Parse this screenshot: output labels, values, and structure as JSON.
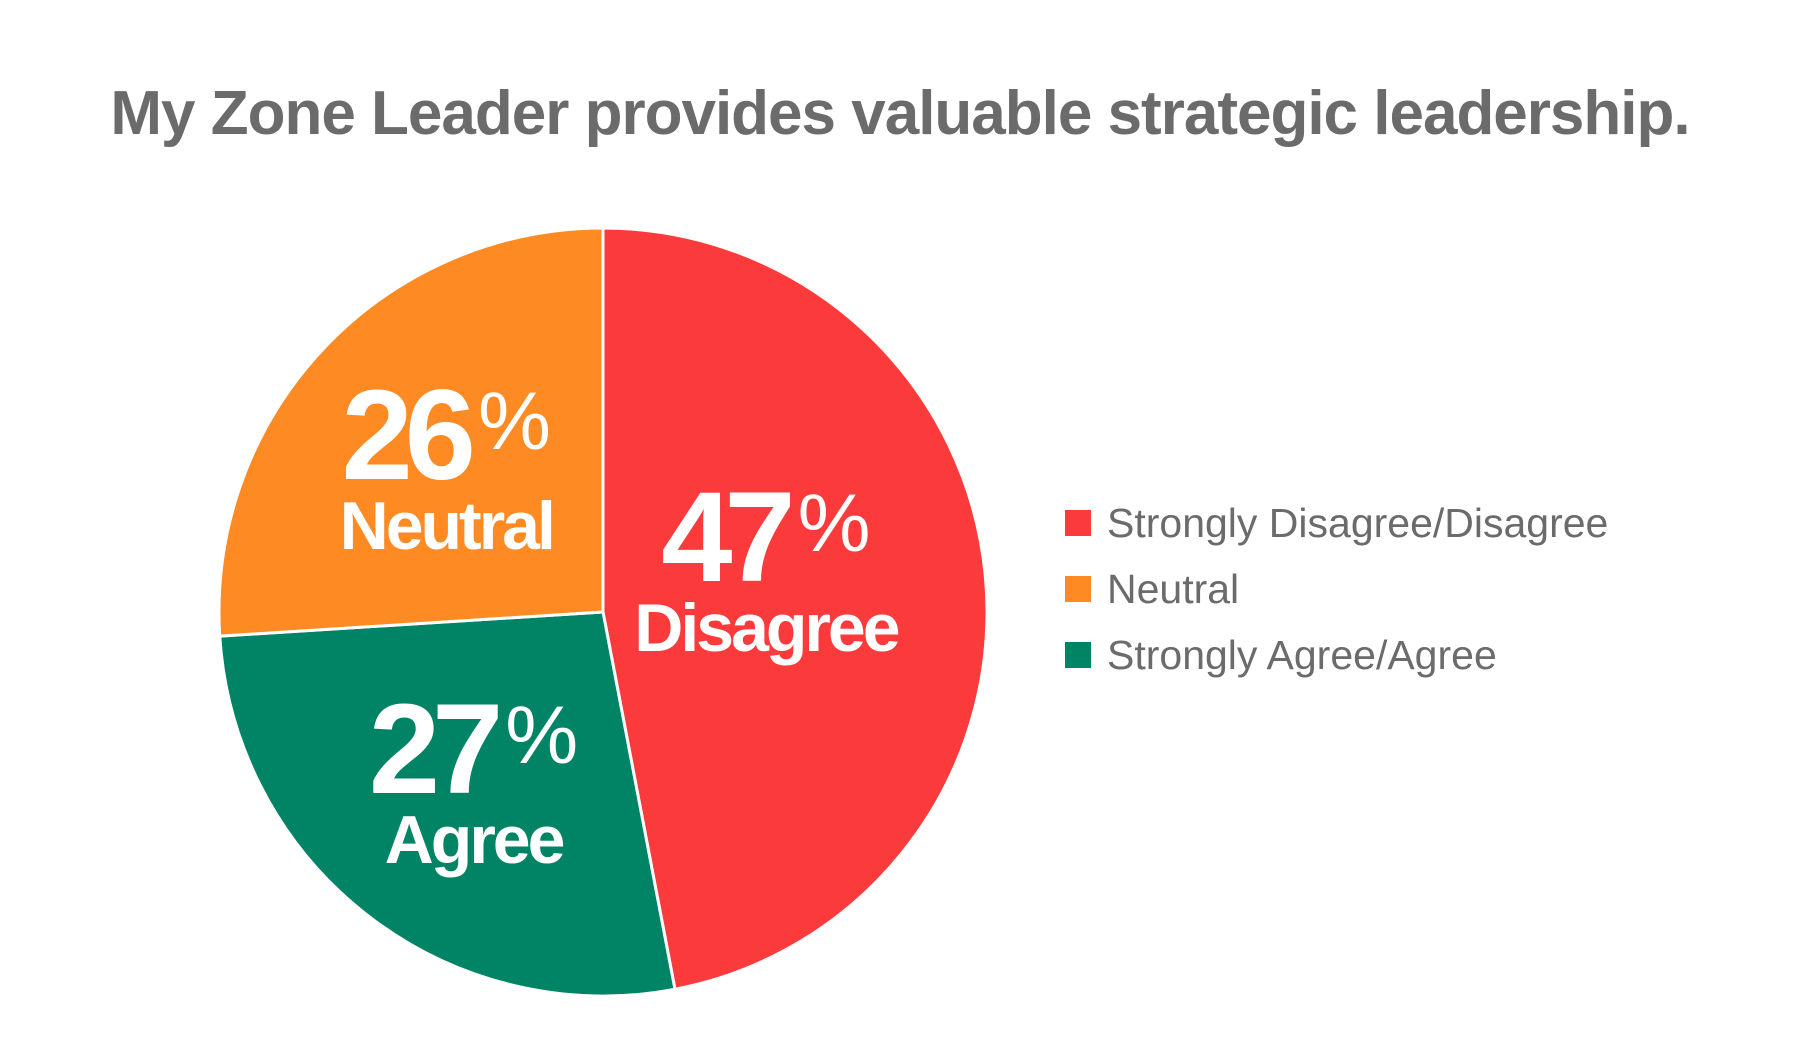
{
  "chart_data": {
    "type": "pie",
    "title": "My Zone Leader provides valuable strategic leadership.",
    "slices": [
      {
        "name": "Strongly Disagree/Disagree",
        "value": 47,
        "short_label": "Disagree",
        "color": "#fb3b3b"
      },
      {
        "name": "Strongly Agree/Agree",
        "value": 27,
        "short_label": "Agree",
        "color": "#008465"
      },
      {
        "name": "Neutral",
        "value": 26,
        "short_label": "Neutral",
        "color": "#fd8a22"
      }
    ],
    "legend": {
      "placement": "right",
      "entries": [
        {
          "label": "Strongly Disagree/Disagree",
          "color": "#fb3b3b"
        },
        {
          "label": "Neutral",
          "color": "#fd8a22"
        },
        {
          "label": "Strongly Agree/Agree",
          "color": "#008465"
        }
      ]
    },
    "percent_sign": "%"
  }
}
